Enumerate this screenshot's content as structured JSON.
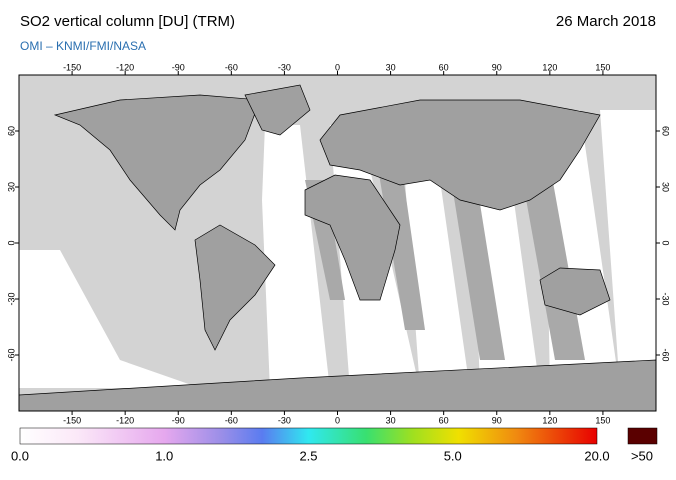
{
  "header": {
    "title": "SO2 vertical column [DU] (TRM)",
    "date": "26 March 2018",
    "source": "OMI  –  KNMI/FMI/NASA"
  },
  "map": {
    "xlim": [
      -180,
      180
    ],
    "ylim": [
      -90,
      90
    ],
    "lon_ticks": [
      -150,
      -120,
      -90,
      -60,
      -30,
      0,
      30,
      60,
      90,
      120,
      150
    ],
    "lat_ticks": [
      60,
      30,
      0,
      -30,
      -60
    ]
  },
  "colorbar": {
    "labels": [
      "0.0",
      "1.0",
      "2.5",
      "5.0",
      "20.0"
    ],
    "overflow_label": ">50"
  }
}
